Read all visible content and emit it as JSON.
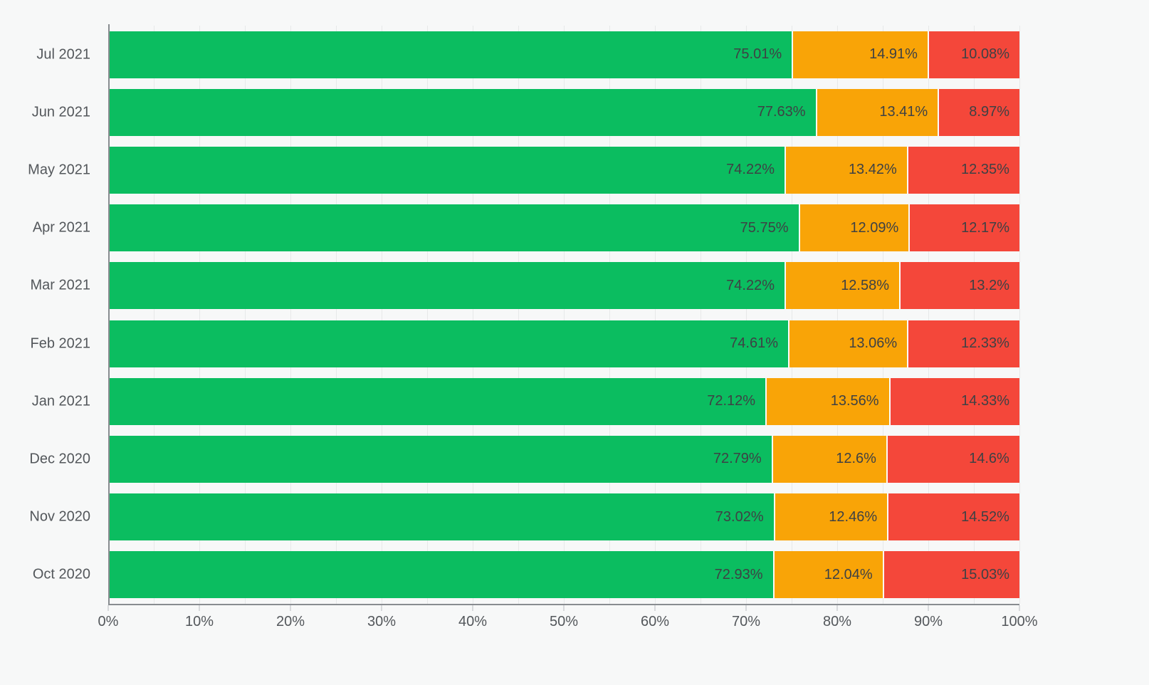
{
  "colors": {
    "background": "#f7f8f8",
    "green": "#0bbd60",
    "orange": "#f9a407",
    "red": "#f4473a",
    "axis": "#888c90",
    "gridline": "#e7e9e9"
  },
  "chart_data": {
    "type": "bar",
    "orientation": "horizontal",
    "stacked": true,
    "title": "",
    "xlabel": "",
    "ylabel": "",
    "xlim": [
      0,
      100
    ],
    "grid": true,
    "legend_position": "none",
    "categories": [
      "Jul 2021",
      "Jun 2021",
      "May 2021",
      "Apr 2021",
      "Mar 2021",
      "Feb 2021",
      "Jan 2021",
      "Dec 2020",
      "Nov 2020",
      "Oct 2020"
    ],
    "x_ticks": [
      "0%",
      "10%",
      "20%",
      "30%",
      "40%",
      "50%",
      "60%",
      "70%",
      "80%",
      "90%",
      "100%"
    ],
    "series": [
      {
        "name": "green",
        "color": "#0bbd60",
        "values": [
          75.01,
          77.63,
          74.22,
          75.75,
          74.22,
          74.61,
          72.12,
          72.79,
          73.02,
          72.93
        ],
        "labels": [
          "75.01%",
          "77.63%",
          "74.22%",
          "75.75%",
          "74.22%",
          "74.61%",
          "72.12%",
          "72.79%",
          "73.02%",
          "72.93%"
        ]
      },
      {
        "name": "orange",
        "color": "#f9a407",
        "values": [
          14.91,
          13.41,
          13.42,
          12.09,
          12.58,
          13.06,
          13.56,
          12.6,
          12.46,
          12.04
        ],
        "labels": [
          "14.91%",
          "13.41%",
          "13.42%",
          "12.09%",
          "12.58%",
          "13.06%",
          "13.56%",
          "12.6%",
          "12.46%",
          "12.04%"
        ]
      },
      {
        "name": "red",
        "color": "#f4473a",
        "values": [
          10.08,
          8.97,
          12.35,
          12.17,
          13.2,
          12.33,
          14.33,
          14.6,
          14.52,
          15.03
        ],
        "labels": [
          "10.08%",
          "8.97%",
          "12.35%",
          "12.17%",
          "13.2%",
          "12.33%",
          "14.33%",
          "14.6%",
          "14.52%",
          "15.03%"
        ]
      }
    ]
  }
}
